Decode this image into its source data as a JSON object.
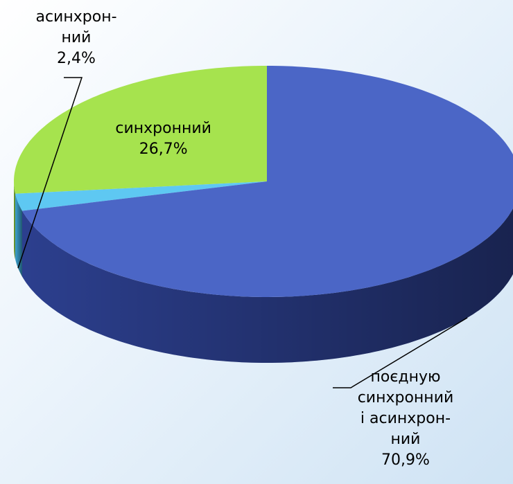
{
  "chart_data": {
    "type": "pie3d",
    "categories": [
      "синхронний",
      "асинхрон-\nний",
      "поєдную\nсинхронний\nі асинхрон-\nний"
    ],
    "values": [
      26.7,
      2.4,
      70.9
    ],
    "value_labels": [
      "26,7%",
      "2,4%",
      "70,9%"
    ],
    "colors": [
      "#a6e34e",
      "#5ec8f2",
      "#4b66c6"
    ],
    "side_colors": [
      "#7fb83a",
      "#3aa0cc",
      "#2c3f8e"
    ]
  }
}
